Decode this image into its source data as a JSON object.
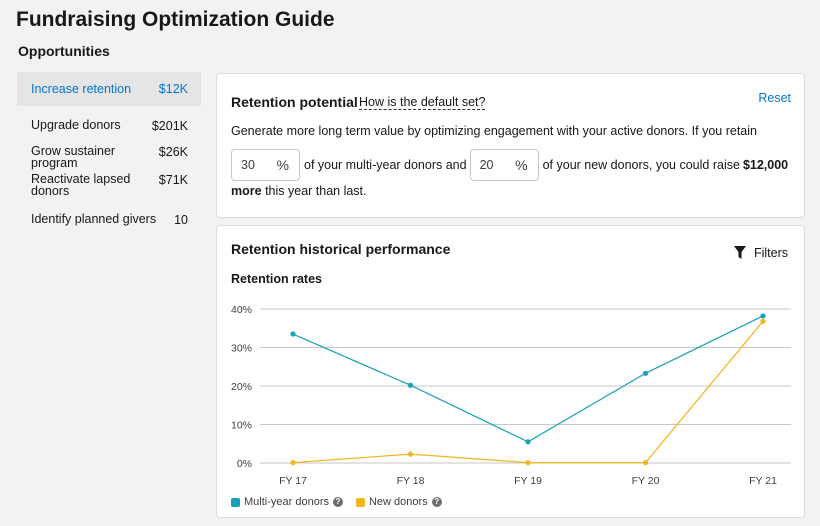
{
  "page": {
    "title": "Fundraising Optimization Guide",
    "section": "Opportunities"
  },
  "sidebar": {
    "items": [
      {
        "label": "Increase retention",
        "value": "$12K",
        "active": true
      },
      {
        "label": "Upgrade donors",
        "value": "$201K"
      },
      {
        "label": "Grow sustainer program",
        "value": "$26K"
      },
      {
        "label": "Reactivate lapsed donors",
        "value": "$71K"
      },
      {
        "label": "Identify planned givers",
        "value": "10"
      }
    ]
  },
  "potential": {
    "title": "Retention potential",
    "help_link": "How is the default set?",
    "reset": "Reset",
    "description": "Generate more long term value by optimizing engagement with your active donors. If you retain",
    "multi_year_pct": "30",
    "new_pct": "20",
    "pct_symbol": "%",
    "text_multi": "of your multi-year donors and",
    "text_new": "of your new donors, you could raise",
    "amount": "$12,000",
    "more": "more",
    "tail": "this year than last."
  },
  "performance": {
    "title": "Retention historical performance",
    "filters": "Filters",
    "filter_icon": "funnel-icon"
  },
  "chart_data": {
    "type": "line",
    "title": "Retention rates",
    "categories": [
      "FY 17",
      "FY 18",
      "FY 19",
      "FY 20",
      "FY 21"
    ],
    "y_ticks": [
      "0%",
      "10%",
      "20%",
      "30%",
      "40%"
    ],
    "ylim": [
      0,
      40
    ],
    "grid": true,
    "legend_position": "bottom-left",
    "series": [
      {
        "name": "Multi-year donors",
        "color": "#1aa2b8",
        "values": [
          33.5,
          20.2,
          5.5,
          23.3,
          38.2
        ]
      },
      {
        "name": "New donors",
        "color": "#f0b61a",
        "values": [
          0.1,
          2.3,
          0.1,
          0.1,
          36.8
        ]
      }
    ],
    "help_icon": "question-icon"
  }
}
